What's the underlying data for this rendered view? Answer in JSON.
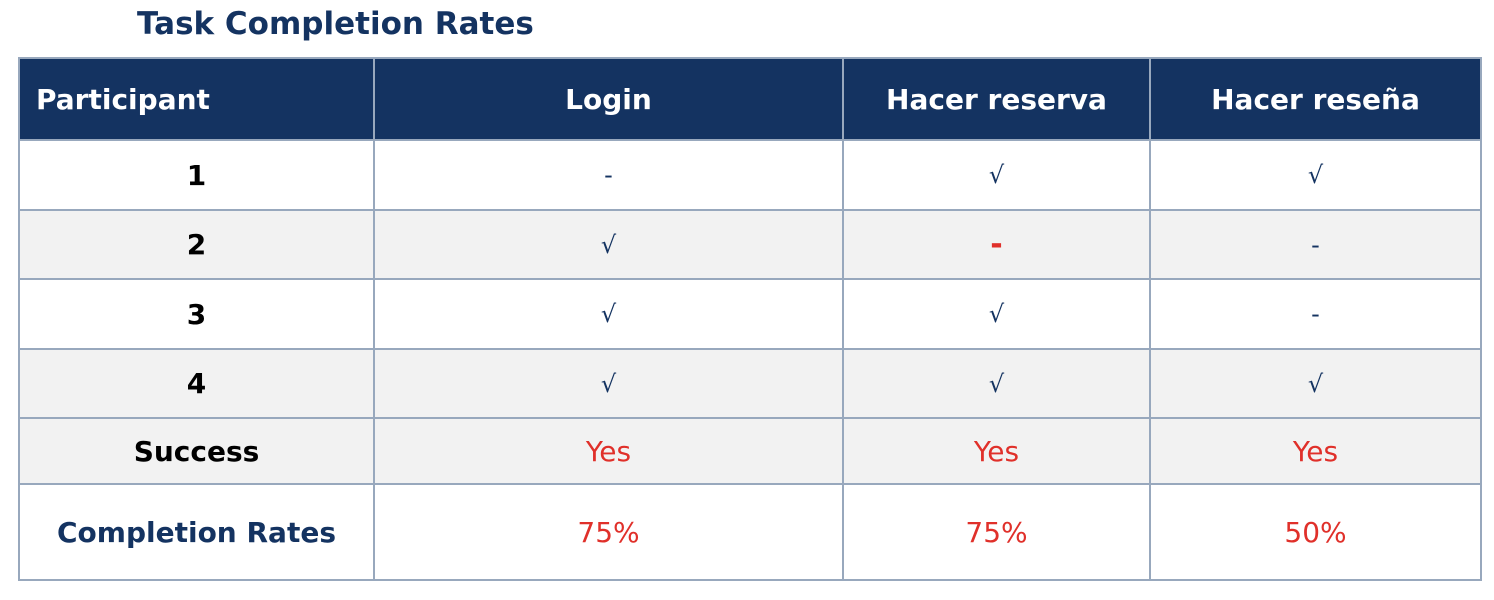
{
  "chart_data": {
    "type": "table",
    "title": "Task Completion Rates",
    "columns": [
      "Participant",
      "Login",
      "Hacer reserva",
      "Hacer reseña"
    ],
    "rows": [
      {
        "participant": "1",
        "cells": [
          "-",
          "√",
          "√"
        ]
      },
      {
        "participant": "2",
        "cells": [
          "√",
          "-",
          "-"
        ]
      },
      {
        "participant": "3",
        "cells": [
          "√",
          "√",
          "-"
        ]
      },
      {
        "participant": "4",
        "cells": [
          "√",
          "√",
          "√"
        ]
      }
    ],
    "success": {
      "label": "Success",
      "values": [
        "Yes",
        "Yes",
        "Yes"
      ]
    },
    "completion_rates": {
      "label": "Completion Rates",
      "values": [
        "75%",
        "75%",
        "50%"
      ],
      "numeric": [
        75,
        75,
        50
      ]
    },
    "highlighted_cell": {
      "row": 1,
      "col": 1,
      "color": "#e0302a"
    }
  },
  "colors": {
    "header_bg": "#143361",
    "header_text": "#ffffff",
    "accent_red": "#e0302a",
    "border": "#98a8bd",
    "stripe": "#f2f2f2"
  }
}
